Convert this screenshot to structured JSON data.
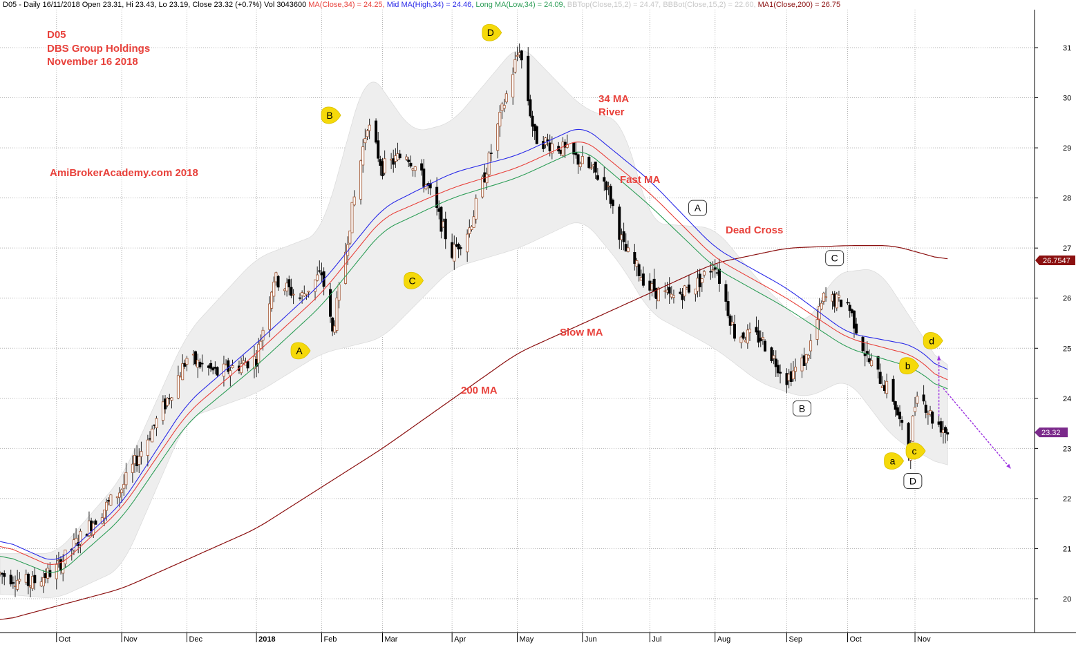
{
  "header": {
    "prefix": "D05 - Daily 16/11/2018 Open 23.31, Hi 23.43, Lo 23.19, Close 23.32 (+0.7%) Vol 3043600",
    "ma_close": "MA(Close,34) = 24.25,",
    "mid_ma": "Mid MA(High,34) = 24.46,",
    "long_ma": "Long MA(Low,34) = 24.09,",
    "bbtop": "BBTop(Close,15,2) = 24.47,",
    "bbbot": "BBBot(Close,15,2) = 22.60,",
    "ma200": "MA1(Close,200) = 26.75"
  },
  "colors": {
    "ma_close": "#e8413b",
    "mid_ma": "#2a2ae8",
    "long_ma": "#2e9e58",
    "bb_text": "#c8c8c8",
    "ma200": "#8b1010",
    "bb_fill": "#eeeeee",
    "annotation": "#e8413b",
    "yellow_marker": "#f5d90a",
    "arrow": "#9b30e0"
  },
  "annotations": {
    "symbol": "D05",
    "company": "DBS Group Holdings",
    "date": "November 16 2018",
    "website": "AmiBrokerAcademy.com  2018",
    "ma34_line1": "34 MA",
    "ma34_line2": "River",
    "fast_ma": "Fast MA",
    "dead_cross": "Dead Cross",
    "slow_ma": "Slow MA",
    "ma200_label": "200 MA"
  },
  "price_tags": {
    "ma200": "26.7547",
    "close": "23.32"
  },
  "chart_data": {
    "type": "candlestick",
    "ylim": [
      19.5,
      31.5
    ],
    "yticks": [
      20,
      21,
      22,
      23,
      24,
      25,
      26,
      27,
      28,
      29,
      30,
      31
    ],
    "xticks": [
      {
        "label": "Oct",
        "date": "2017-10-02"
      },
      {
        "label": "Nov",
        "date": "2017-11-01"
      },
      {
        "label": "Dec",
        "date": "2017-12-01"
      },
      {
        "label": "2018",
        "date": "2018-01-02"
      },
      {
        "label": "Feb",
        "date": "2018-02-01"
      },
      {
        "label": "Mar",
        "date": "2018-03-01"
      },
      {
        "label": "Apr",
        "date": "2018-04-02"
      },
      {
        "label": "May",
        "date": "2018-05-02"
      },
      {
        "label": "Jun",
        "date": "2018-06-01"
      },
      {
        "label": "Jul",
        "date": "2018-07-02"
      },
      {
        "label": "Aug",
        "date": "2018-08-01"
      },
      {
        "label": "Sep",
        "date": "2018-09-03"
      },
      {
        "label": "Oct",
        "date": "2018-10-01"
      },
      {
        "label": "Nov",
        "date": "2018-11-01"
      }
    ],
    "x_range": [
      "2017-09-06",
      "2018-12-26"
    ],
    "price_path": [
      [
        "2017-09-06",
        20.5
      ],
      [
        "2017-09-20",
        20.3
      ],
      [
        "2017-10-02",
        20.6
      ],
      [
        "2017-10-16",
        21.4
      ],
      [
        "2017-11-01",
        22.2
      ],
      [
        "2017-11-20",
        23.8
      ],
      [
        "2017-12-01",
        24.8
      ],
      [
        "2017-12-15",
        24.5
      ],
      [
        "2018-01-02",
        24.8
      ],
      [
        "2018-01-10",
        26.4
      ],
      [
        "2018-01-22",
        26.0
      ],
      [
        "2018-02-01",
        26.5
      ],
      [
        "2018-02-06",
        25.3
      ],
      [
        "2018-02-14",
        27.5
      ],
      [
        "2018-02-22",
        29.5
      ],
      [
        "2018-03-01",
        28.6
      ],
      [
        "2018-03-12",
        28.9
      ],
      [
        "2018-03-22",
        28.2
      ],
      [
        "2018-04-02",
        26.9
      ],
      [
        "2018-04-10",
        27.4
      ],
      [
        "2018-04-18",
        28.6
      ],
      [
        "2018-04-26",
        29.9
      ],
      [
        "2018-05-03",
        31.0
      ],
      [
        "2018-05-10",
        29.2
      ],
      [
        "2018-05-22",
        29.0
      ],
      [
        "2018-06-01",
        28.7
      ],
      [
        "2018-06-12",
        28.3
      ],
      [
        "2018-06-20",
        27.0
      ],
      [
        "2018-07-02",
        26.2
      ],
      [
        "2018-07-12",
        26.0
      ],
      [
        "2018-07-24",
        26.3
      ],
      [
        "2018-08-01",
        26.7
      ],
      [
        "2018-08-10",
        25.3
      ],
      [
        "2018-08-22",
        25.2
      ],
      [
        "2018-09-03",
        24.4
      ],
      [
        "2018-09-12",
        24.8
      ],
      [
        "2018-09-20",
        26.0
      ],
      [
        "2018-10-01",
        25.9
      ],
      [
        "2018-10-10",
        24.8
      ],
      [
        "2018-10-22",
        24.0
      ],
      [
        "2018-10-29",
        22.9
      ],
      [
        "2018-11-02",
        24.2
      ],
      [
        "2018-11-09",
        23.6
      ],
      [
        "2018-11-16",
        23.32
      ]
    ],
    "ma200": [
      [
        "2017-09-06",
        19.55
      ],
      [
        "2017-11-01",
        20.2
      ],
      [
        "2018-01-02",
        21.4
      ],
      [
        "2018-03-01",
        23.0
      ],
      [
        "2018-05-02",
        24.9
      ],
      [
        "2018-07-02",
        26.1
      ],
      [
        "2018-08-01",
        26.7
      ],
      [
        "2018-09-03",
        27.0
      ],
      [
        "2018-10-01",
        27.05
      ],
      [
        "2018-10-22",
        27.05
      ],
      [
        "2018-11-16",
        26.75
      ]
    ],
    "ma34_close": [
      [
        "2017-09-06",
        21.1
      ],
      [
        "2017-10-02",
        20.6
      ],
      [
        "2017-11-01",
        21.8
      ],
      [
        "2017-12-01",
        23.7
      ],
      [
        "2018-01-02",
        24.9
      ],
      [
        "2018-02-01",
        26.1
      ],
      [
        "2018-03-01",
        27.6
      ],
      [
        "2018-04-02",
        28.2
      ],
      [
        "2018-05-02",
        28.6
      ],
      [
        "2018-06-01",
        29.2
      ],
      [
        "2018-07-02",
        28.1
      ],
      [
        "2018-08-01",
        26.8
      ],
      [
        "2018-09-03",
        26.0
      ],
      [
        "2018-10-01",
        25.2
      ],
      [
        "2018-11-01",
        24.85
      ],
      [
        "2018-11-16",
        24.25
      ]
    ],
    "ma34_high": [
      [
        "2017-09-06",
        21.2
      ],
      [
        "2017-10-02",
        20.7
      ],
      [
        "2017-11-01",
        21.9
      ],
      [
        "2017-12-01",
        23.9
      ],
      [
        "2018-01-02",
        25.1
      ],
      [
        "2018-02-01",
        26.3
      ],
      [
        "2018-03-01",
        27.8
      ],
      [
        "2018-04-02",
        28.5
      ],
      [
        "2018-05-02",
        28.85
      ],
      [
        "2018-06-01",
        29.45
      ],
      [
        "2018-07-02",
        28.35
      ],
      [
        "2018-08-01",
        27.0
      ],
      [
        "2018-09-03",
        26.2
      ],
      [
        "2018-10-01",
        25.3
      ],
      [
        "2018-11-01",
        25.05
      ],
      [
        "2018-11-16",
        24.46
      ]
    ],
    "ma34_low": [
      [
        "2017-09-06",
        20.9
      ],
      [
        "2017-10-02",
        20.45
      ],
      [
        "2017-11-01",
        21.6
      ],
      [
        "2017-12-01",
        23.5
      ],
      [
        "2018-01-02",
        24.65
      ],
      [
        "2018-02-01",
        25.85
      ],
      [
        "2018-03-01",
        27.35
      ],
      [
        "2018-04-02",
        28.0
      ],
      [
        "2018-05-02",
        28.4
      ],
      [
        "2018-06-01",
        29.0
      ],
      [
        "2018-07-02",
        27.85
      ],
      [
        "2018-08-01",
        26.6
      ],
      [
        "2018-09-03",
        25.8
      ],
      [
        "2018-10-01",
        25.0
      ],
      [
        "2018-11-01",
        24.6
      ],
      [
        "2018-11-16",
        24.09
      ]
    ],
    "bb_upper": [
      [
        "2017-09-06",
        20.9
      ],
      [
        "2017-10-02",
        20.9
      ],
      [
        "2017-11-01",
        22.4
      ],
      [
        "2017-12-01",
        25.3
      ],
      [
        "2018-01-02",
        26.8
      ],
      [
        "2018-02-01",
        27.3
      ],
      [
        "2018-02-22",
        30.6
      ],
      [
        "2018-03-15",
        29.3
      ],
      [
        "2018-04-02",
        29.5
      ],
      [
        "2018-05-03",
        31.1
      ],
      [
        "2018-06-01",
        29.8
      ],
      [
        "2018-06-20",
        29.5
      ],
      [
        "2018-07-02",
        27.5
      ],
      [
        "2018-08-01",
        27.4
      ],
      [
        "2018-08-22",
        26.3
      ],
      [
        "2018-09-12",
        25.4
      ],
      [
        "2018-09-25",
        26.5
      ],
      [
        "2018-10-15",
        26.6
      ],
      [
        "2018-11-16",
        24.47
      ]
    ],
    "bb_lower": [
      [
        "2017-09-06",
        20.1
      ],
      [
        "2017-10-02",
        20.0
      ],
      [
        "2017-11-01",
        20.6
      ],
      [
        "2017-12-01",
        23.6
      ],
      [
        "2018-01-02",
        24.1
      ],
      [
        "2018-02-01",
        24.9
      ],
      [
        "2018-03-01",
        25.2
      ],
      [
        "2018-04-02",
        26.6
      ],
      [
        "2018-05-03",
        27.0
      ],
      [
        "2018-06-01",
        27.6
      ],
      [
        "2018-06-20",
        26.6
      ],
      [
        "2018-07-02",
        25.7
      ],
      [
        "2018-08-01",
        25.0
      ],
      [
        "2018-08-22",
        24.3
      ],
      [
        "2018-09-12",
        24.0
      ],
      [
        "2018-10-01",
        24.4
      ],
      [
        "2018-10-22",
        23.2
      ],
      [
        "2018-11-16",
        22.6
      ]
    ],
    "markers_yellow": [
      {
        "label": "A",
        "date": "2018-01-22",
        "price": 24.95
      },
      {
        "label": "B",
        "date": "2018-02-05",
        "price": 29.65
      },
      {
        "label": "C",
        "date": "2018-03-15",
        "price": 26.35
      },
      {
        "label": "D",
        "date": "2018-04-20",
        "price": 31.3
      },
      {
        "label": "a",
        "date": "2018-10-22",
        "price": 22.75
      },
      {
        "label": "b",
        "date": "2018-10-29",
        "price": 24.65
      },
      {
        "label": "c",
        "date": "2018-11-01",
        "price": 22.95
      },
      {
        "label": "d",
        "date": "2018-11-09",
        "price": 25.15
      }
    ],
    "markers_white": [
      {
        "label": "A",
        "date": "2018-07-24",
        "price": 27.8
      },
      {
        "label": "B",
        "date": "2018-09-10",
        "price": 23.8
      },
      {
        "label": "C",
        "date": "2018-09-25",
        "price": 26.8
      },
      {
        "label": "D",
        "date": "2018-10-31",
        "price": 22.35
      }
    ],
    "arrow_up": {
      "from": [
        "2018-11-12",
        23.65
      ],
      "to": [
        "2018-11-12",
        24.85
      ]
    },
    "arrow_down": {
      "from": [
        "2018-11-14",
        24.2
      ],
      "to": [
        "2018-12-15",
        22.6
      ]
    }
  }
}
